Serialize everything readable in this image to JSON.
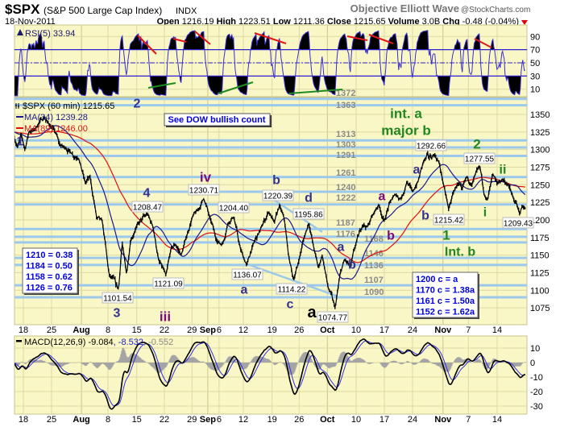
{
  "header": {
    "symbol": "$SPX",
    "name": "(S&P 500 Large Cap Index)",
    "exchange": "INDX",
    "brand": "Objective Elliott Wave",
    "site": "@StockCharts.com",
    "date": "18-Nov-2011",
    "quote": [
      {
        "label": "Open",
        "value": "1216.19"
      },
      {
        "label": "High",
        "value": "1223.51"
      },
      {
        "label": "Low",
        "value": "1211.36"
      },
      {
        "label": "Close",
        "value": "1215.65"
      },
      {
        "label": "Volume",
        "value": "3.0B"
      },
      {
        "label": "Chg",
        "value": "-0.48 (-0.04%)"
      }
    ]
  },
  "rsi": {
    "label": "RSI(5) 33.94",
    "ticks": [
      "90",
      "70",
      "50",
      "30",
      "10"
    ]
  },
  "price_panel": {
    "legend_symbol": "$SPX (60 min) 1215.65",
    "legend_ma34": "MA(34) 1239.28",
    "legend_ma89": "MA(89) 1246.00",
    "note": "See DOW bullish count",
    "ticks": [
      "1350",
      "1325",
      "1300",
      "1275",
      "1250",
      "1225",
      "1200",
      "1175",
      "1150",
      "1125",
      "1100",
      "1075"
    ],
    "levels": [
      "1372",
      "1363",
      "1313",
      "1303",
      "1291",
      "1261",
      "1240",
      "1222",
      "1187",
      "1176",
      "1168",
      "1146",
      "1136",
      "1107",
      "1090"
    ],
    "fib_box": [
      "1210 = 0.38",
      "1184 = 0.50",
      "1158 = 0.62",
      "1126 = 0.76"
    ],
    "target_box": [
      "1200 c = a",
      "1170 c = 1.38a",
      "1161 c = 1.50a",
      "1152 c = 1.62a"
    ],
    "price_labels": [
      "1292.66",
      "1277.55",
      "1215.42",
      "1209.43",
      "1230.71",
      "1208.47",
      "1204.40",
      "1220.39",
      "1195.86",
      "1101.54",
      "1121.09",
      "1136.07",
      "1114.22",
      "1074.77"
    ],
    "wave_labels": [
      "2",
      "1",
      "3",
      "4",
      "iii",
      "iv",
      "a",
      "b",
      "c",
      "d",
      "a",
      "a",
      "b",
      "a",
      "b",
      "a",
      "b",
      "int. a",
      "major b",
      "2",
      "ii",
      "i",
      "1",
      "Int. b"
    ]
  },
  "macd": {
    "label": "MACD(12,26,9) -9.084",
    "signal": ", -8.532",
    "hist": ", -0.552",
    "ticks": [
      "10",
      "0",
      "-10",
      "-20",
      "-30"
    ]
  },
  "dates": [
    "18",
    "25",
    "Aug",
    "8",
    "15",
    "22",
    "29",
    "Sep",
    "6",
    "12",
    "19",
    "26",
    "Oct",
    "10",
    "17",
    "24",
    "Nov",
    "7",
    "14"
  ],
  "colors": {
    "panel": "#f9f7c6",
    "grid": "#ddd9a2",
    "level": "#9cc8ec",
    "ma34": "#1a1a8c",
    "ma89": "#e01010",
    "rsi": "#3a2fd0",
    "wave_blue": "#33338f",
    "wave_purple": "#7a0a7a",
    "wave_green": "#23861f",
    "box_text": "#0000dd"
  },
  "chart_data": {
    "type": "line",
    "title": "$SPX (S&P 500 Large Cap Index) 60 min",
    "xlabel": "",
    "ylabel": "",
    "x_unit": "trading session index from 18-Jul-2011",
    "x_ticks": [
      0,
      5,
      10.3,
      15,
      20.1,
      25,
      29.9,
      32.7,
      34.7,
      39,
      44.1,
      48.9,
      53.9,
      59,
      64,
      69,
      74.4,
      78.9,
      84
    ],
    "ylim": [
      1060,
      1375
    ],
    "grid": true,
    "series": [
      {
        "name": "$SPX",
        "points": [
          [
            -1.6,
            1316
          ],
          [
            -1,
            1303
          ],
          [
            -0.4,
            1322
          ],
          [
            0.3,
            1300
          ],
          [
            1,
            1326
          ],
          [
            2,
            1328
          ],
          [
            3,
            1342
          ],
          [
            3.7,
            1345
          ],
          [
            4.5,
            1337
          ],
          [
            5.5,
            1328
          ],
          [
            6.5,
            1306
          ],
          [
            7.5,
            1302
          ],
          [
            8.5,
            1295
          ],
          [
            9.8,
            1288
          ],
          [
            11,
            1252
          ],
          [
            11.8,
            1262
          ],
          [
            13,
            1203
          ],
          [
            14,
            1198
          ],
          [
            15.2,
            1122
          ],
          [
            16.9,
            1101.54
          ],
          [
            17.5,
            1168
          ],
          [
            18.3,
            1122
          ],
          [
            19,
            1170
          ],
          [
            20,
            1190
          ],
          [
            22,
            1208.47
          ],
          [
            23,
            1190
          ],
          [
            24,
            1142
          ],
          [
            25.3,
            1121.09
          ],
          [
            26.2,
            1160
          ],
          [
            27,
            1165
          ],
          [
            28,
            1150
          ],
          [
            29,
            1178
          ],
          [
            30,
            1205
          ],
          [
            31,
            1214
          ],
          [
            32,
            1230.71
          ],
          [
            33,
            1205
          ],
          [
            34.3,
            1170
          ],
          [
            35.3,
            1165
          ],
          [
            36.3,
            1196
          ],
          [
            37.3,
            1204.4
          ],
          [
            38.5,
            1158
          ],
          [
            39.6,
            1136.07
          ],
          [
            40.6,
            1162
          ],
          [
            42,
            1186
          ],
          [
            43.5,
            1212
          ],
          [
            44.5,
            1196
          ],
          [
            45.4,
            1220.39
          ],
          [
            46.3,
            1200
          ],
          [
            47,
            1150
          ],
          [
            47.9,
            1114.22
          ],
          [
            48.8,
            1140
          ],
          [
            49.6,
            1170
          ],
          [
            50.6,
            1195.86
          ],
          [
            51.5,
            1160
          ],
          [
            52.3,
            1132
          ],
          [
            53,
            1150
          ],
          [
            54,
            1105
          ],
          [
            55.3,
            1074.77
          ],
          [
            56.2,
            1125
          ],
          [
            57,
            1144
          ],
          [
            58,
            1132
          ],
          [
            59,
            1168
          ],
          [
            60.2,
            1194
          ],
          [
            61,
            1190
          ],
          [
            62,
            1208
          ],
          [
            63,
            1222
          ],
          [
            64,
            1198
          ],
          [
            65,
            1226
          ],
          [
            66,
            1236
          ],
          [
            67,
            1230
          ],
          [
            68,
            1254
          ],
          [
            69,
            1240
          ],
          [
            70,
            1255
          ],
          [
            71,
            1285
          ],
          [
            72.9,
            1292.66
          ],
          [
            73.7,
            1282
          ],
          [
            74.5,
            1250
          ],
          [
            75.4,
            1215.42
          ],
          [
            76.2,
            1238
          ],
          [
            77,
            1252
          ],
          [
            77.8,
            1243
          ],
          [
            78.6,
            1262
          ],
          [
            79.5,
            1250
          ],
          [
            80.9,
            1277.55
          ],
          [
            81.7,
            1235
          ],
          [
            82.3,
            1228
          ],
          [
            83.2,
            1266
          ],
          [
            84,
            1252
          ],
          [
            85,
            1258
          ],
          [
            86,
            1250
          ],
          [
            86.8,
            1232
          ],
          [
            88,
            1209.43
          ],
          [
            88.5,
            1220
          ],
          [
            89,
            1215.65
          ]
        ]
      }
    ],
    "levels": [
      1372,
      1363,
      1313,
      1303,
      1291,
      1261,
      1240,
      1222,
      1187,
      1176,
      1168,
      1146,
      1136,
      1107,
      1090
    ],
    "indicators": {
      "ma_periods": [
        34,
        89
      ],
      "rsi_period": 5,
      "rsi_levels": [
        70,
        50,
        30
      ],
      "macd": [
        12,
        26,
        9
      ]
    }
  }
}
